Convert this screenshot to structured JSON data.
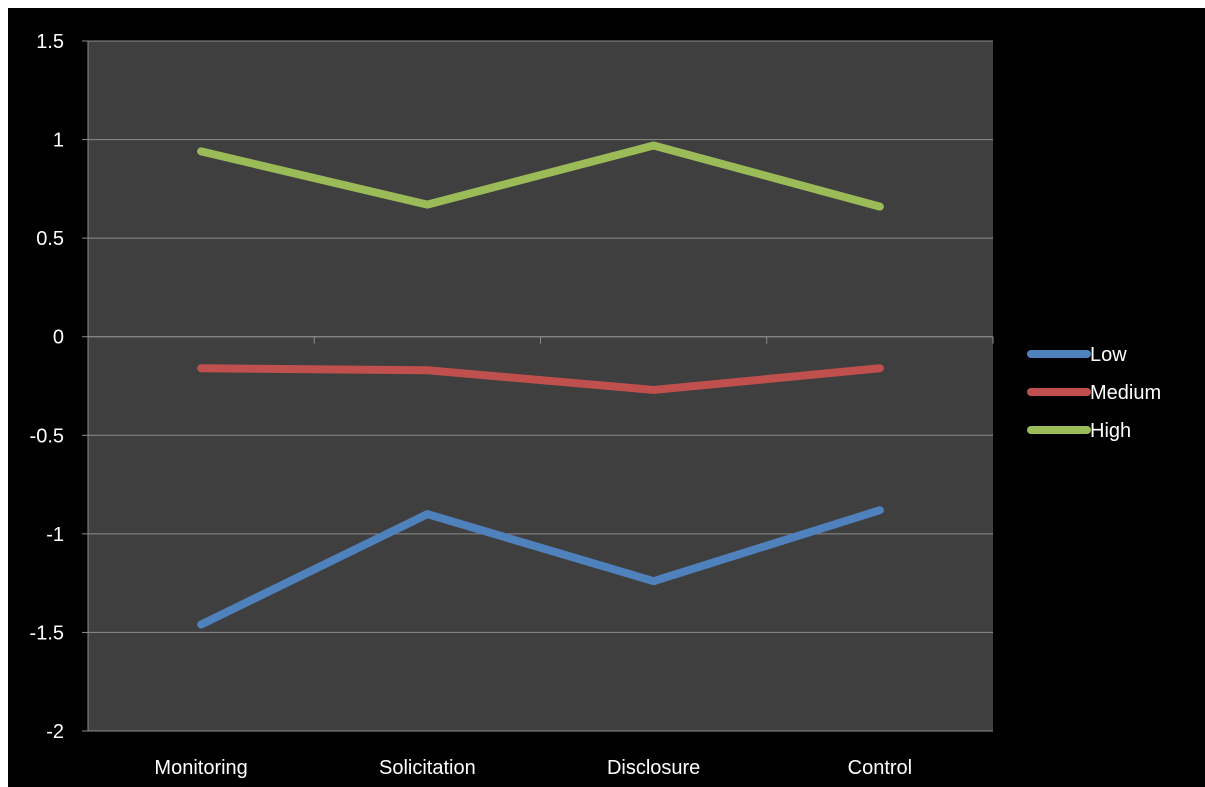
{
  "chart_data": {
    "type": "line",
    "categories": [
      "Monitoring",
      "Solicitation",
      "Disclosure",
      "Control"
    ],
    "series": [
      {
        "name": "Low",
        "values": [
          -1.46,
          -0.9,
          -1.24,
          -0.88
        ],
        "color": "#4f81bd"
      },
      {
        "name": "Medium",
        "values": [
          -0.16,
          -0.17,
          -0.27,
          -0.16
        ],
        "color": "#c0504d"
      },
      {
        "name": "High",
        "values": [
          0.94,
          0.67,
          0.97,
          0.66
        ],
        "color": "#9bbb59"
      }
    ],
    "ylim": [
      -2,
      1.5
    ],
    "yticks": [
      "1.5",
      "1",
      "0.5",
      "0",
      "-0.5",
      "-1",
      "-1.5",
      "-2"
    ],
    "grid": true,
    "legend": "right",
    "background": "#000000",
    "plot_background": "#3f3f3f",
    "gridline_color": "#8c8c8c",
    "text_color": "#ffffff"
  }
}
